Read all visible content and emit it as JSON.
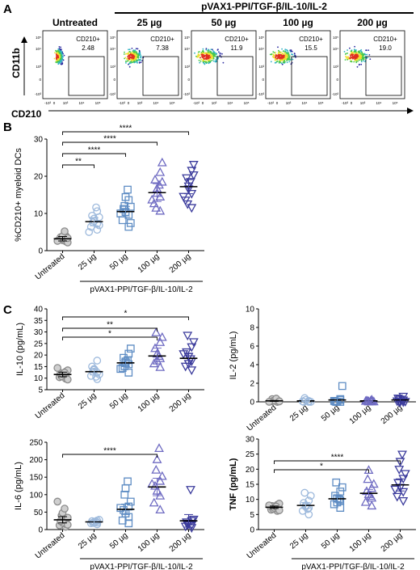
{
  "panelA": {
    "label": "A",
    "group_title": "pVAX1-PPI/TGF-β/IL-10/IL-2",
    "ylabel": "CD11b",
    "xlabel": "CD210",
    "gate_label": "CD210+",
    "x_ticks": [
      "-10³",
      "0",
      "10³",
      "10⁴",
      "10⁵"
    ],
    "y_ticks": [
      "10⁵",
      "10⁴",
      "10³",
      "0",
      "-10³"
    ],
    "plots": [
      {
        "title": "Untreated",
        "percent": "2.48"
      },
      {
        "title": "25 µg",
        "percent": "7.38"
      },
      {
        "title": "50 µg",
        "percent": "11.9"
      },
      {
        "title": "100 µg",
        "percent": "15.5"
      },
      {
        "title": "200 µg",
        "percent": "19.0"
      }
    ]
  },
  "panelB": {
    "label": "B"
  },
  "panelC": {
    "label": "C"
  },
  "categories": [
    "Untreated",
    "25 µg",
    "50 µg",
    "100 µg",
    "200 µg"
  ],
  "group_label": "pVAX1-PPI/TGF-β/IL-10/IL-2",
  "colors": {
    "Untreated": "#8c8c8c",
    "25 µg": "#9db9dc",
    "50 µg": "#5f8dc4",
    "100 µg": "#6f6bc2",
    "200 µg": "#3b3b9c",
    "flow_sparse": "#2a2aa0",
    "flow_mid": "#2fb2c2",
    "flow_dense1": "#48c848",
    "flow_dense2": "#f0e030",
    "flow_core": "#e03020"
  },
  "chart_data": [
    {
      "id": "B",
      "type": "scatter",
      "ylabel": "%CD210+ myeloid DCs",
      "ylim": [
        0,
        30
      ],
      "yticks": [
        "0",
        "10",
        "20",
        "30"
      ],
      "markers": [
        "circle",
        "circle",
        "square",
        "triangle-up",
        "triangle-down"
      ],
      "means": [
        3.2,
        7.8,
        10.5,
        15.6,
        17.2
      ],
      "sem": [
        0.6,
        1.1,
        1.4,
        2.4,
        1.9
      ],
      "points": [
        [
          2.5,
          3.0,
          3.3,
          2.8,
          3.6,
          4.0,
          2.2,
          3.1,
          3.9,
          5.2,
          2.6,
          3.4
        ],
        [
          5.6,
          6.4,
          7.2,
          8.0,
          9.4,
          10.6,
          6.8,
          7.6,
          8.6,
          11.6,
          5.0,
          9.0
        ],
        [
          6.4,
          8.2,
          9.6,
          10.4,
          11.2,
          13.6,
          7.4,
          12.0,
          14.4,
          16.4,
          10.0,
          11.8
        ],
        [
          10.6,
          12.6,
          14.4,
          16.6,
          19.0,
          21.0,
          23.6,
          11.4,
          15.4,
          17.6,
          13.6,
          18.4
        ],
        [
          11.6,
          13.6,
          15.4,
          17.4,
          19.6,
          21.6,
          23.2,
          12.6,
          16.6,
          18.6,
          14.6,
          20.4
        ]
      ],
      "significance": [
        {
          "from": "Untreated",
          "to": "25 µg",
          "label": "**"
        },
        {
          "from": "Untreated",
          "to": "50 µg",
          "label": "****"
        },
        {
          "from": "Untreated",
          "to": "100 µg",
          "label": "****"
        },
        {
          "from": "Untreated",
          "to": "200 µg",
          "label": "****"
        }
      ]
    },
    {
      "id": "C-IL10",
      "type": "scatter",
      "ylabel": "IL-10 (pg/mL)",
      "ylim": [
        5,
        40
      ],
      "yticks": [
        "5",
        "10",
        "15",
        "20",
        "25",
        "30",
        "35",
        "40"
      ],
      "markers": [
        "circle",
        "circle",
        "square",
        "triangle-up",
        "triangle-down"
      ],
      "means": [
        11.6,
        12.8,
        16.6,
        19.6,
        18.6
      ],
      "sem": [
        1.0,
        1.4,
        1.6,
        3.4,
        2.2
      ],
      "points": [
        [
          9.8,
          10.4,
          11.0,
          11.6,
          12.2,
          12.8,
          13.4,
          10.8,
          11.8,
          12.4,
          14.4,
          9.4
        ],
        [
          9.6,
          11.0,
          12.4,
          13.6,
          15.0,
          17.6,
          11.6,
          12.8,
          14.0,
          10.6
        ],
        [
          12.4,
          14.4,
          16.0,
          17.2,
          18.8,
          20.6,
          22.8,
          15.2,
          16.6,
          17.8,
          14.0
        ],
        [
          14.6,
          16.2,
          18.4,
          20.4,
          22.8,
          25.4,
          27.6,
          29.6,
          17.4,
          19.4
        ],
        [
          13.6,
          15.2,
          17.4,
          19.4,
          21.4,
          23.6,
          25.8,
          28.6,
          16.4,
          18.4,
          20.6
        ]
      ],
      "significance": [
        {
          "from": "Untreated",
          "to": "200 µg",
          "label": "*"
        },
        {
          "from": "Untreated",
          "to": "100 µg",
          "label": "**"
        },
        {
          "from": "Untreated",
          "to": "100 µg",
          "label": "*"
        }
      ]
    },
    {
      "id": "C-IL2",
      "type": "scatter",
      "ylabel": "IL-2 (pg/mL)",
      "ylim": [
        0,
        10
      ],
      "yticks": [
        "0",
        "2",
        "4",
        "6",
        "8",
        "10"
      ],
      "markers": [
        "circle",
        "circle",
        "square",
        "triangle-up",
        "triangle-down"
      ],
      "means": [
        0.1,
        0.1,
        0.2,
        0.1,
        0.2
      ],
      "sem": [
        0.05,
        0.05,
        0.15,
        0.05,
        0.1
      ],
      "points": [
        [
          0.0,
          0.05,
          0.1,
          0.2,
          0.3,
          0.0,
          0.05,
          0.1,
          0.15,
          0.35,
          0.0,
          0.05
        ],
        [
          0.0,
          0.05,
          0.1,
          0.2,
          0.0,
          0.05,
          0.0,
          0.4
        ],
        [
          0.0,
          0.1,
          0.2,
          0.0,
          0.05,
          0.3,
          1.7,
          0.0
        ],
        [
          0.0,
          0.05,
          0.1,
          0.0,
          0.1,
          0.2,
          0.0,
          0.05,
          0.0,
          0.1
        ],
        [
          0.0,
          0.1,
          0.2,
          0.0,
          0.4,
          0.6,
          0.05,
          0.0,
          0.3
        ]
      ],
      "significance": []
    },
    {
      "id": "C-IL6",
      "type": "scatter",
      "ylabel": "IL-6 (pg/mL)",
      "ylim": [
        0,
        250
      ],
      "yticks": [
        "0",
        "50",
        "100",
        "150",
        "200",
        "250"
      ],
      "markers": [
        "circle",
        "circle",
        "square",
        "triangle-up",
        "triangle-down"
      ],
      "means": [
        28,
        22,
        58,
        122,
        25
      ],
      "sem": [
        9,
        3,
        15,
        25,
        18
      ],
      "points": [
        [
          8,
          12,
          16,
          20,
          24,
          28,
          34,
          40,
          48,
          60,
          80,
          14
        ],
        [
          15,
          18,
          20,
          22,
          24,
          26,
          28,
          19,
          21,
          23
        ],
        [
          18,
          26,
          36,
          46,
          56,
          66,
          80,
          100,
          118,
          138,
          62
        ],
        [
          56,
          76,
          96,
          110,
          124,
          138,
          152,
          170,
          200,
          232,
          130
        ],
        [
          6,
          10,
          14,
          18,
          22,
          26,
          30,
          14,
          18,
          115
        ]
      ],
      "significance": [
        {
          "from": "Untreated",
          "to": "100 µg",
          "label": "****"
        }
      ]
    },
    {
      "id": "C-TNF",
      "type": "scatter",
      "ylabel": "TNF (pg/mL)",
      "ylim": [
        0,
        30
      ],
      "yticks": [
        "0",
        "5",
        "10",
        "15",
        "20",
        "25",
        "30"
      ],
      "markers": [
        "circle",
        "circle",
        "square",
        "triangle-up",
        "triangle-down"
      ],
      "means": [
        7.4,
        8.0,
        10.2,
        12.0,
        14.8
      ],
      "sem": [
        0.4,
        1.0,
        1.1,
        1.3,
        2.0
      ],
      "points": [
        [
          6.2,
          6.6,
          7.0,
          7.4,
          7.8,
          8.2,
          8.6,
          6.8,
          7.2,
          7.6,
          8.0,
          6.4
        ],
        [
          5.0,
          6.2,
          7.2,
          8.0,
          8.8,
          9.6,
          11.2,
          12.2,
          7.6,
          6.8
        ],
        [
          7.2,
          8.4,
          9.6,
          10.4,
          11.2,
          12.6,
          14.0,
          15.6,
          9.0,
          10.0
        ],
        [
          7.8,
          9.0,
          10.4,
          11.6,
          12.6,
          13.6,
          15.0,
          16.6,
          19.6,
          11.0
        ],
        [
          9.6,
          11.0,
          12.6,
          14.0,
          15.6,
          17.0,
          18.6,
          20.0,
          22.6,
          25.0,
          13.4
        ]
      ],
      "significance": [
        {
          "from": "Untreated",
          "to": "100 µg",
          "label": "*"
        },
        {
          "from": "Untreated",
          "to": "200 µg",
          "label": "****"
        }
      ]
    }
  ]
}
